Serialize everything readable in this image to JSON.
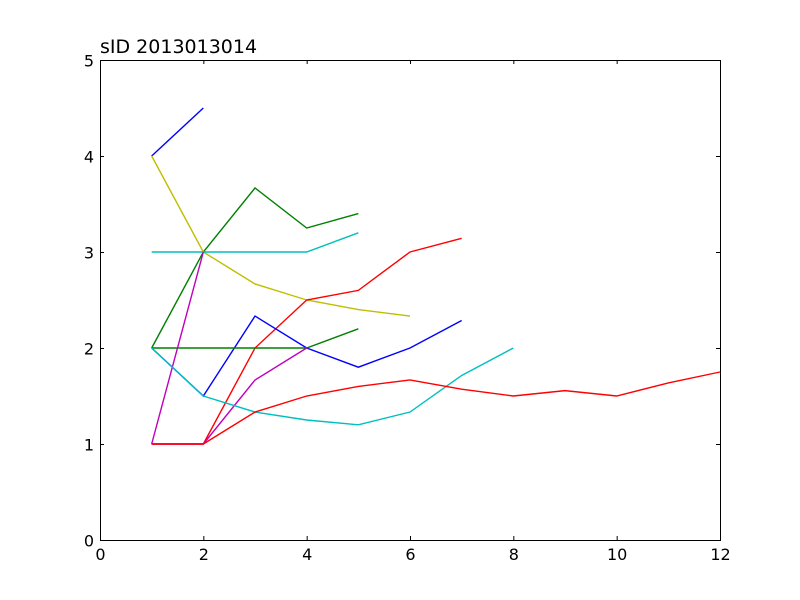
{
  "chart_data": {
    "type": "line",
    "title": "sID 2013013014",
    "xlabel": "",
    "ylabel": "",
    "xlim": [
      0,
      12
    ],
    "ylim": [
      0,
      5
    ],
    "xticks": [
      "0",
      "2",
      "4",
      "6",
      "8",
      "10",
      "12"
    ],
    "yticks": [
      "0",
      "1",
      "2",
      "3",
      "4",
      "5"
    ],
    "grid": false,
    "legend": "none",
    "series": [
      {
        "color": "#0000ff",
        "points": [
          [
            1,
            4.0
          ],
          [
            2,
            4.5
          ]
        ]
      },
      {
        "color": "#008000",
        "points": [
          [
            1,
            2.0
          ],
          [
            2,
            3.0
          ],
          [
            3,
            3.667
          ],
          [
            4,
            3.25
          ],
          [
            5,
            3.4
          ]
        ]
      },
      {
        "color": "#bfbf00",
        "points": [
          [
            1,
            4.0
          ],
          [
            2,
            3.0
          ],
          [
            3,
            2.667
          ],
          [
            4,
            2.5
          ],
          [
            5,
            2.4
          ],
          [
            6,
            2.333
          ]
        ]
      },
      {
        "color": "#00bfbf",
        "points": [
          [
            1,
            3.0
          ],
          [
            2,
            3.0
          ],
          [
            3,
            3.0
          ],
          [
            4,
            3.0
          ],
          [
            5,
            3.2
          ]
        ]
      },
      {
        "color": "#ff0000",
        "points": [
          [
            1,
            1.0
          ],
          [
            2,
            1.0
          ],
          [
            3,
            2.0
          ],
          [
            4,
            2.5
          ],
          [
            5,
            2.6
          ],
          [
            6,
            3.0
          ],
          [
            7,
            3.143
          ]
        ]
      },
      {
        "color": "#0000ff",
        "points": [
          [
            1,
            2.0
          ],
          [
            2,
            1.5
          ],
          [
            3,
            2.333
          ],
          [
            4,
            2.0
          ],
          [
            5,
            1.8
          ],
          [
            6,
            2.0
          ],
          [
            7,
            2.286
          ]
        ]
      },
      {
        "color": "#008000",
        "points": [
          [
            1,
            2.0
          ],
          [
            2,
            2.0
          ],
          [
            3,
            2.0
          ],
          [
            4,
            2.0
          ],
          [
            5,
            2.2
          ]
        ]
      },
      {
        "color": "#bf00bf",
        "points": [
          [
            1,
            1.0
          ],
          [
            2,
            3.0
          ]
        ]
      },
      {
        "color": "#bf00bf",
        "points": [
          [
            1,
            1.0
          ],
          [
            2,
            1.0
          ],
          [
            3,
            1.667
          ],
          [
            4,
            2.0
          ]
        ]
      },
      {
        "color": "#00bfbf",
        "points": [
          [
            1,
            2.0
          ],
          [
            2,
            1.5
          ],
          [
            3,
            1.333
          ],
          [
            4,
            1.25
          ],
          [
            5,
            1.2
          ],
          [
            6,
            1.333
          ],
          [
            7,
            1.714
          ],
          [
            8,
            2.0
          ]
        ]
      },
      {
        "color": "#ff0000",
        "points": [
          [
            1,
            1.0
          ],
          [
            2,
            1.0
          ],
          [
            3,
            1.333
          ],
          [
            4,
            1.5
          ],
          [
            5,
            1.6
          ],
          [
            6,
            1.667
          ],
          [
            7,
            1.571
          ],
          [
            8,
            1.5
          ],
          [
            9,
            1.556
          ],
          [
            10,
            1.5
          ],
          [
            11,
            1.636
          ],
          [
            12,
            1.75
          ]
        ]
      }
    ]
  }
}
